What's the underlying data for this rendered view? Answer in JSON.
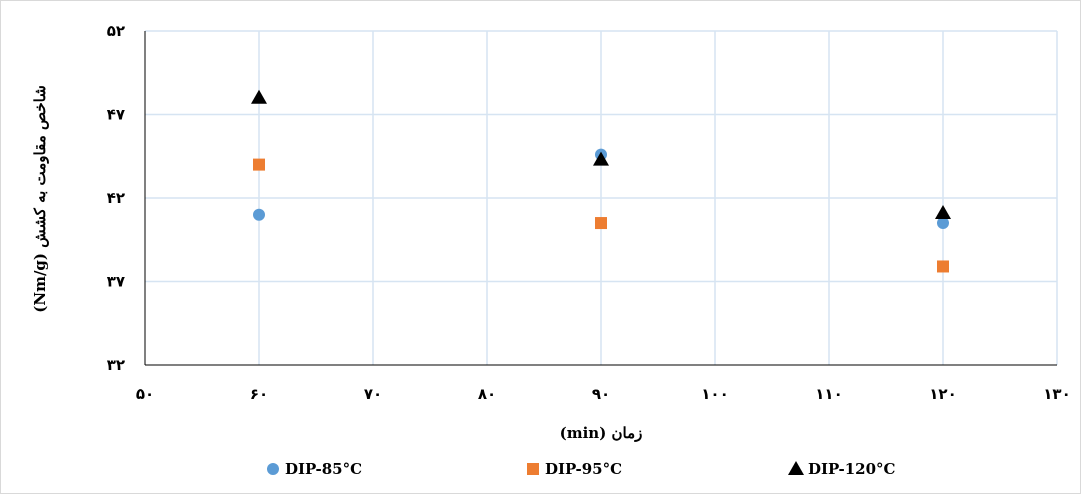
{
  "chart_data": {
    "type": "scatter",
    "xlabel": "زمان (min)",
    "ylabel": "شاخص مقاومت به کشش (Nm/g)",
    "xlim": [
      50,
      130
    ],
    "ylim": [
      32,
      52
    ],
    "x_ticks": [
      {
        "value": 50,
        "label": "۵۰"
      },
      {
        "value": 60,
        "label": "۶۰"
      },
      {
        "value": 70,
        "label": "۷۰"
      },
      {
        "value": 80,
        "label": "۸۰"
      },
      {
        "value": 90,
        "label": "۹۰"
      },
      {
        "value": 100,
        "label": "۱۰۰"
      },
      {
        "value": 110,
        "label": "۱۱۰"
      },
      {
        "value": 120,
        "label": "۱۲۰"
      },
      {
        "value": 130,
        "label": "۱۳۰"
      }
    ],
    "y_ticks": [
      {
        "value": 32,
        "label": "۳۲"
      },
      {
        "value": 37,
        "label": "۳۷"
      },
      {
        "value": 42,
        "label": "۴۲"
      },
      {
        "value": 47,
        "label": "۴۷"
      },
      {
        "value": 52,
        "label": "۵۲"
      }
    ],
    "grid": true,
    "legend_position": "bottom",
    "series": [
      {
        "name": "DIP-85°C",
        "marker": "circle",
        "color": "#5b9bd5",
        "x": [
          60,
          90,
          120
        ],
        "y": [
          41.0,
          44.6,
          40.5
        ]
      },
      {
        "name": "DIP-95°C",
        "marker": "square",
        "color": "#ed7d31",
        "x": [
          60,
          90,
          120
        ],
        "y": [
          44.0,
          40.5,
          37.9
        ]
      },
      {
        "name": "DIP-120°C",
        "marker": "triangle",
        "color": "#000000",
        "x": [
          60,
          90,
          120
        ],
        "y": [
          48.0,
          44.3,
          41.1
        ]
      }
    ]
  }
}
